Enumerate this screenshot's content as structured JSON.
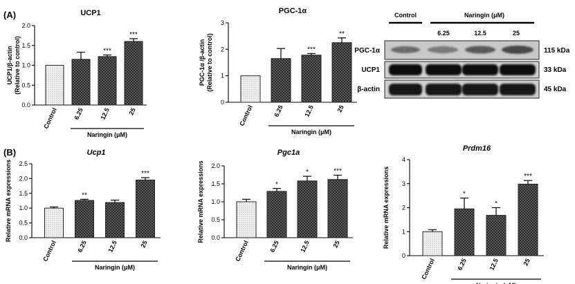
{
  "figure": {
    "panel_a": "(A)",
    "panel_b": "(B)",
    "group_label": "Naringin (μM)"
  },
  "blot": {
    "control_label": "Control",
    "naringin_label": "Naringin (μM)",
    "doses": [
      "6.25",
      "12.5",
      "25"
    ],
    "bands": [
      {
        "protein": "PGC-1α",
        "size": "115 kDa"
      },
      {
        "protein": "UCP1",
        "size": "33 kDa"
      },
      {
        "protein": "β-actin",
        "size": "45 kDa"
      }
    ]
  },
  "chart_data": [
    {
      "type": "bar",
      "title": "UCP1",
      "ylabel": "UCP1/β-actin\n(Relative to control)",
      "categories": [
        "Control",
        "6.25",
        "12.5",
        "25"
      ],
      "values": [
        1.0,
        1.15,
        1.22,
        1.6
      ],
      "errors": [
        0.0,
        0.18,
        0.04,
        0.07
      ],
      "significance": [
        "",
        "",
        "***",
        "***"
      ],
      "ylim": [
        0,
        2.0
      ],
      "yticks": [
        "0.0",
        "0.5",
        "1.0",
        "1.5",
        "2.0"
      ],
      "xlabel": "Naringin (μM)"
    },
    {
      "type": "bar",
      "title": "PGC-1α",
      "ylabel": "PGC-1α /β-actin\n(Relative to control)",
      "categories": [
        "Control",
        "6.25",
        "12.5",
        "25"
      ],
      "values": [
        1.0,
        1.65,
        1.78,
        2.25
      ],
      "errors": [
        0.0,
        0.38,
        0.06,
        0.18
      ],
      "significance": [
        "",
        "",
        "***",
        "**"
      ],
      "ylim": [
        0,
        3
      ],
      "yticks": [
        "0",
        "1",
        "2",
        "3"
      ],
      "xlabel": "Naringin (μM)"
    },
    {
      "type": "bar",
      "title": "Ucp1",
      "ylabel": "Relative mRNA expressions",
      "categories": [
        "Control",
        "6.25",
        "12.5",
        "25"
      ],
      "values": [
        1.0,
        1.26,
        1.19,
        1.95
      ],
      "errors": [
        0.04,
        0.04,
        0.08,
        0.08
      ],
      "significance": [
        "",
        "**",
        "",
        "***"
      ],
      "ylim": [
        0,
        2.5
      ],
      "yticks": [
        "0.0",
        "0.5",
        "1.0",
        "1.5",
        "2.0",
        "2.5"
      ],
      "xlabel": "Naringin (μM)"
    },
    {
      "type": "bar",
      "title": "Pgc1a",
      "ylabel": "Relative mRNA expressions",
      "categories": [
        "Control",
        "6.25",
        "12.5",
        "25"
      ],
      "values": [
        1.0,
        1.29,
        1.58,
        1.62
      ],
      "errors": [
        0.07,
        0.08,
        0.13,
        0.12
      ],
      "significance": [
        "",
        "*",
        "*",
        "***"
      ],
      "ylim": [
        0,
        2.0
      ],
      "yticks": [
        "0.0",
        "0.5",
        "1.0",
        "1.5",
        "2.0"
      ],
      "xlabel": "Naringin (μM)"
    },
    {
      "type": "bar",
      "title": "Prdm16",
      "ylabel": "Relative mRNA expressions",
      "categories": [
        "Control",
        "6.25",
        "12.5",
        "25"
      ],
      "values": [
        1.0,
        1.95,
        1.68,
        2.98
      ],
      "errors": [
        0.08,
        0.45,
        0.32,
        0.15
      ],
      "significance": [
        "",
        "*",
        "*",
        "***"
      ],
      "ylim": [
        0,
        4
      ],
      "yticks": [
        "0",
        "1",
        "2",
        "3",
        "4"
      ],
      "xlabel": "Naringin (μM)"
    }
  ]
}
